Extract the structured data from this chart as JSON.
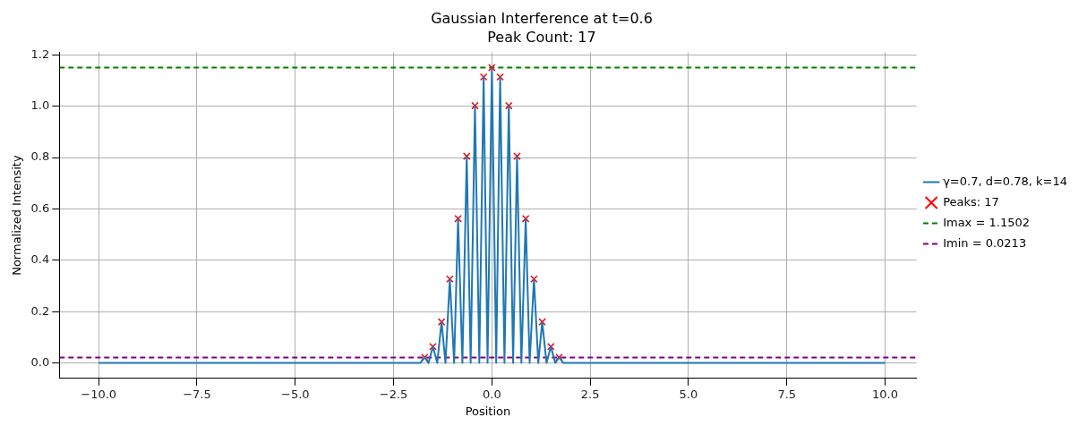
{
  "chart_data": {
    "type": "line",
    "title": "Gaussian Interference at t=0.6",
    "subtitle": "Peak Count: 17",
    "xlabel": "Position",
    "ylabel": "Normalized Intensity",
    "xlim": [
      -11,
      10.8
    ],
    "ylim": [
      -0.06,
      1.21
    ],
    "xticks": [
      {
        "value": -10,
        "label": "−10.0"
      },
      {
        "value": -7.5,
        "label": "−7.5"
      },
      {
        "value": -5,
        "label": "−5.0"
      },
      {
        "value": -2.5,
        "label": "−2.5"
      },
      {
        "value": 0,
        "label": "0.0"
      },
      2.5,
      {
        "value": 5,
        "label": "5.0"
      },
      7.5,
      {
        "value": 10,
        "label": "10.0"
      }
    ],
    "yticks": [
      {
        "value": 0,
        "label": "0.0"
      },
      0.2,
      0.4,
      0.6,
      0.8,
      {
        "value": 1,
        "label": "1.0"
      },
      1.2
    ],
    "grid": true,
    "legend": "right",
    "series": [
      {
        "name": "γ=0.7, d=0.78, k=14",
        "type": "line",
        "color": "#1f77b4",
        "marker": "none",
        "line_style": "solid",
        "x": [
          -10,
          -1.9,
          -1.82,
          -1.71,
          -1.61,
          -1.5,
          -1.39,
          -1.28,
          -1.18,
          -1.07,
          -0.96,
          -0.86,
          -0.75,
          -0.64,
          -0.54,
          -0.43,
          -0.32,
          -0.21,
          -0.11,
          0,
          0.11,
          0.21,
          0.32,
          0.43,
          0.54,
          0.64,
          0.75,
          0.86,
          0.96,
          1.07,
          1.18,
          1.28,
          1.39,
          1.5,
          1.61,
          1.71,
          1.82,
          1.9,
          10
        ],
        "values": [
          0,
          0,
          0,
          0.022,
          0,
          0.064,
          0,
          0.16,
          0,
          0.327,
          0,
          0.562,
          0,
          0.805,
          0,
          1.002,
          0,
          1.114,
          0,
          1.15,
          0,
          1.114,
          0,
          1.002,
          0,
          0.805,
          0,
          0.562,
          0,
          0.327,
          0,
          0.16,
          0,
          0.064,
          0,
          0.022,
          0,
          0,
          0
        ]
      },
      {
        "name": "Peaks: 17",
        "type": "scatter",
        "color": "#ff0000",
        "marker": "cross",
        "x": [
          -1.71,
          -1.5,
          -1.28,
          -1.07,
          -0.86,
          -0.64,
          -0.43,
          -0.21,
          0,
          0.21,
          0.43,
          0.64,
          0.86,
          1.07,
          1.28,
          1.5,
          1.71
        ],
        "values": [
          0.022,
          0.064,
          0.16,
          0.327,
          0.562,
          0.805,
          1.002,
          1.114,
          1.15,
          1.114,
          1.002,
          0.805,
          0.562,
          0.327,
          0.16,
          0.064,
          0.022
        ]
      }
    ],
    "ref_lines": [
      {
        "axis": "y",
        "value": 1.1502,
        "label": "Imax = 1.1502",
        "color": "#008000",
        "line_style": "dashed"
      },
      {
        "axis": "y",
        "value": 0.0213,
        "label": "Imin = 0.0213",
        "color": "#800080",
        "line_style": "dashed"
      }
    ]
  }
}
